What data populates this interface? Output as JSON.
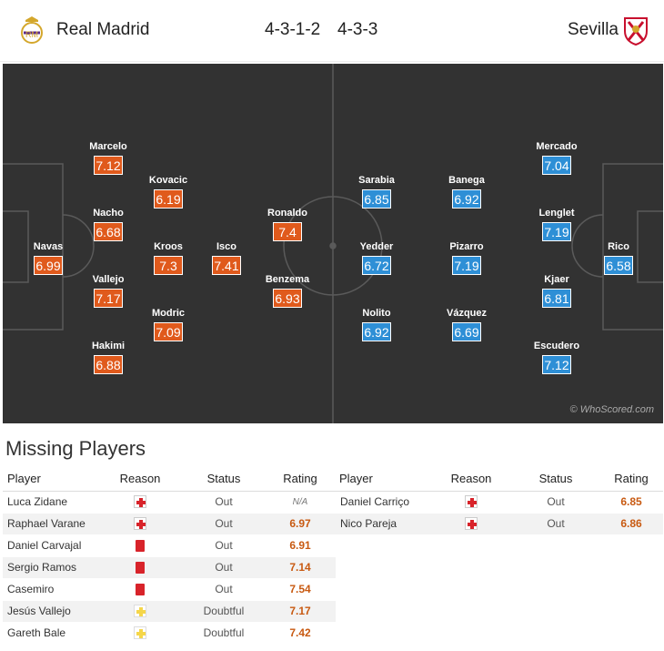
{
  "header": {
    "home_team": "Real Madrid",
    "home_formation": "4-3-1-2",
    "away_formation": "4-3-3",
    "away_team": "Sevilla"
  },
  "colors": {
    "home_rating": "#e05a1c",
    "away_rating": "#2e8fd6",
    "pitch": "#323232"
  },
  "home_players": [
    {
      "name": "Navas",
      "rating": "6.99"
    },
    {
      "name": "Marcelo",
      "rating": "7.12"
    },
    {
      "name": "Nacho",
      "rating": "6.68"
    },
    {
      "name": "Vallejo",
      "rating": "7.17"
    },
    {
      "name": "Hakimi",
      "rating": "6.88"
    },
    {
      "name": "Kovacic",
      "rating": "6.19"
    },
    {
      "name": "Kroos",
      "rating": "7.3"
    },
    {
      "name": "Modric",
      "rating": "7.09"
    },
    {
      "name": "Isco",
      "rating": "7.41"
    },
    {
      "name": "Ronaldo",
      "rating": "7.4"
    },
    {
      "name": "Benzema",
      "rating": "6.93"
    }
  ],
  "away_players": [
    {
      "name": "Sarabia",
      "rating": "6.85"
    },
    {
      "name": "Yedder",
      "rating": "6.72"
    },
    {
      "name": "Nolito",
      "rating": "6.92"
    },
    {
      "name": "Banega",
      "rating": "6.92"
    },
    {
      "name": "Pizarro",
      "rating": "7.19"
    },
    {
      "name": "Vázquez",
      "rating": "6.69"
    },
    {
      "name": "Mercado",
      "rating": "7.04"
    },
    {
      "name": "Lenglet",
      "rating": "7.19"
    },
    {
      "name": "Kjaer",
      "rating": "6.81"
    },
    {
      "name": "Escudero",
      "rating": "7.12"
    },
    {
      "name": "Rico",
      "rating": "6.58"
    }
  ],
  "watermark": "© WhoScored.com",
  "missing": {
    "title": "Missing Players",
    "columns": [
      "Player",
      "Reason",
      "Status",
      "Rating"
    ],
    "home": [
      {
        "player": "Luca Zidane",
        "reason": "injury-icon",
        "status": "Out",
        "rating": "N/A"
      },
      {
        "player": "Raphael Varane",
        "reason": "injury-icon",
        "status": "Out",
        "rating": "6.97"
      },
      {
        "player": "Daniel Carvajal",
        "reason": "suspension-icon",
        "status": "Out",
        "rating": "6.91"
      },
      {
        "player": "Sergio Ramos",
        "reason": "suspension-icon",
        "status": "Out",
        "rating": "7.14"
      },
      {
        "player": "Casemiro",
        "reason": "suspension-icon",
        "status": "Out",
        "rating": "7.54"
      },
      {
        "player": "Jesús Vallejo",
        "reason": "doubtful-icon",
        "status": "Doubtful",
        "rating": "7.17"
      },
      {
        "player": "Gareth Bale",
        "reason": "doubtful-icon",
        "status": "Doubtful",
        "rating": "7.42"
      }
    ],
    "away": [
      {
        "player": "Daniel Carriço",
        "reason": "injury-icon",
        "status": "Out",
        "rating": "6.85"
      },
      {
        "player": "Nico Pareja",
        "reason": "injury-icon",
        "status": "Out",
        "rating": "6.86"
      }
    ]
  }
}
